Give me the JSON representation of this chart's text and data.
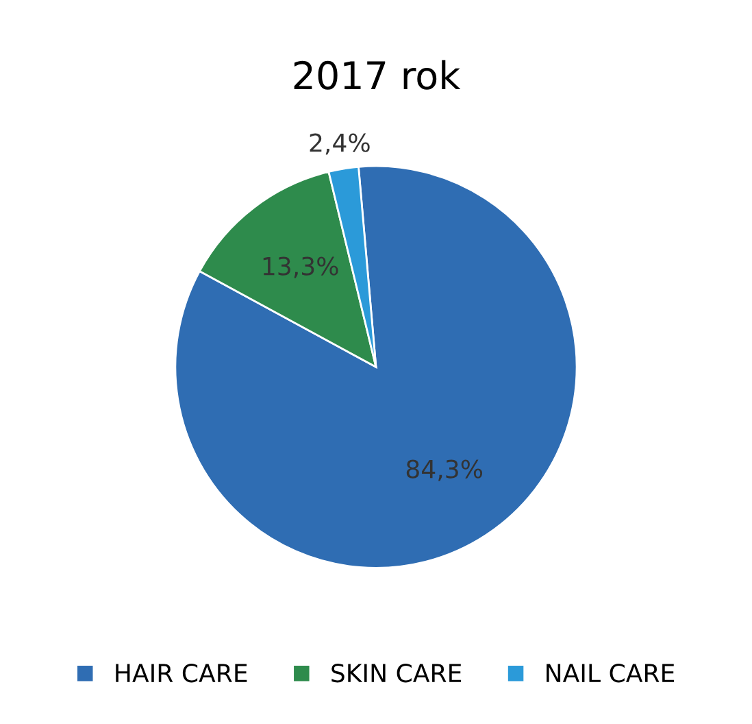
{
  "chart_data": {
    "type": "pie",
    "title": "2017 rok",
    "categories": [
      "HAIR CARE",
      "SKIN CARE",
      "NAIL CARE"
    ],
    "values": [
      84.3,
      13.3,
      2.4
    ],
    "value_labels": [
      "84,3%",
      "13,3%",
      "2,4%"
    ],
    "colors": [
      "#2f6db3",
      "#2e8b4c",
      "#2b9ad9"
    ],
    "legend": "bottom"
  }
}
